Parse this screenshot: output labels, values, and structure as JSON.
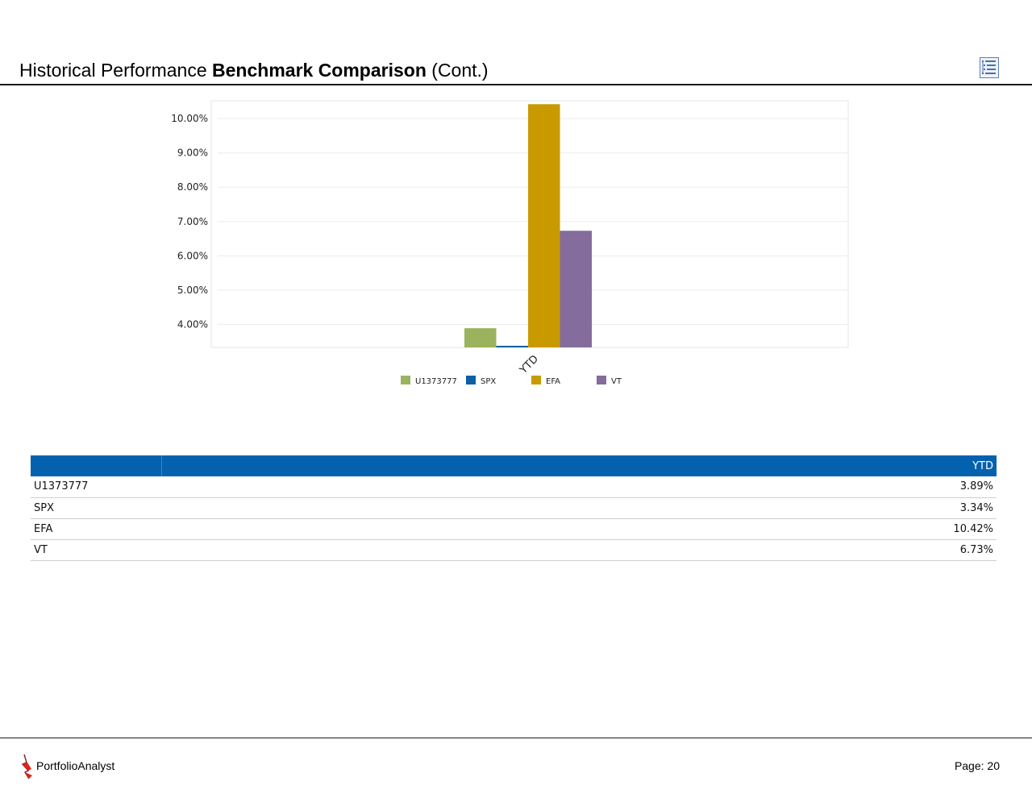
{
  "header": {
    "title_prefix": "Historical Performance",
    "title_bold": "Benchmark Comparison",
    "title_suffix": "(Cont.)",
    "icon": "report-list-icon"
  },
  "chart_data": {
    "type": "bar",
    "title": "",
    "xlabel": "",
    "ylabel": "",
    "categories": [
      "YTD"
    ],
    "series": [
      {
        "name": "U1373777",
        "values": [
          3.89
        ],
        "color": "#9bb35d"
      },
      {
        "name": "SPX",
        "values": [
          3.34
        ],
        "color": "#0b5fa5"
      },
      {
        "name": "EFA",
        "values": [
          10.42
        ],
        "color": "#c99a00"
      },
      {
        "name": "VT",
        "values": [
          6.73
        ],
        "color": "#846c9c"
      }
    ],
    "ylim": [
      3.33,
      10.52
    ],
    "yticks": [
      "10.00%",
      "9.00%",
      "8.00%",
      "7.00%",
      "6.00%",
      "5.00%",
      "4.00%"
    ],
    "ytick_values": [
      10,
      9,
      8,
      7,
      6,
      5,
      4
    ],
    "legend_position": "bottom",
    "grid": true
  },
  "table": {
    "columns": [
      "",
      "YTD"
    ],
    "rows": [
      {
        "name": "U1373777",
        "ytd": "3.89%"
      },
      {
        "name": "SPX",
        "ytd": "3.34%"
      },
      {
        "name": "EFA",
        "ytd": "10.42%"
      },
      {
        "name": "VT",
        "ytd": "6.73%"
      }
    ]
  },
  "footer": {
    "brand": "PortfolioAnalyst",
    "page": "Page: 20",
    "logo_icon": "portfolioanalyst-logo-icon"
  },
  "colors": {
    "table_header": "#0461ae",
    "rule": "#1a1a1a"
  }
}
